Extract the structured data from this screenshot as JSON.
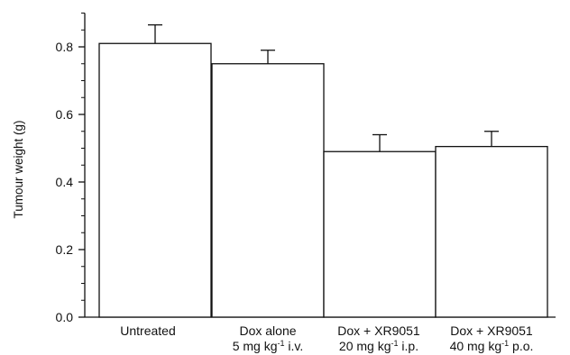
{
  "chart_data": {
    "type": "bar",
    "ylabel": "Tumour weight (g)",
    "ylim": [
      0,
      0.9
    ],
    "yticks": [
      "0.0",
      "0.2",
      "0.4",
      "0.6",
      "0.8"
    ],
    "grid": false,
    "categories": [
      {
        "line1": "Untreated",
        "line2_pre": "",
        "line2_sup": "",
        "line2_post": ""
      },
      {
        "line1": "Dox alone",
        "line2_pre": "5 mg kg",
        "line2_sup": "-1",
        "line2_post": " i.v."
      },
      {
        "line1": "Dox + XR9051",
        "line2_pre": "20 mg kg",
        "line2_sup": "-1",
        "line2_post": " i.p."
      },
      {
        "line1": "Dox + XR9051",
        "line2_pre": "40 mg kg",
        "line2_sup": "-1",
        "line2_post": " p.o."
      }
    ],
    "values": [
      0.81,
      0.75,
      0.49,
      0.505
    ],
    "errors": [
      0.055,
      0.04,
      0.05,
      0.045
    ],
    "colors": {
      "bar_fill": "#ffffff",
      "stroke": "#111111"
    }
  }
}
